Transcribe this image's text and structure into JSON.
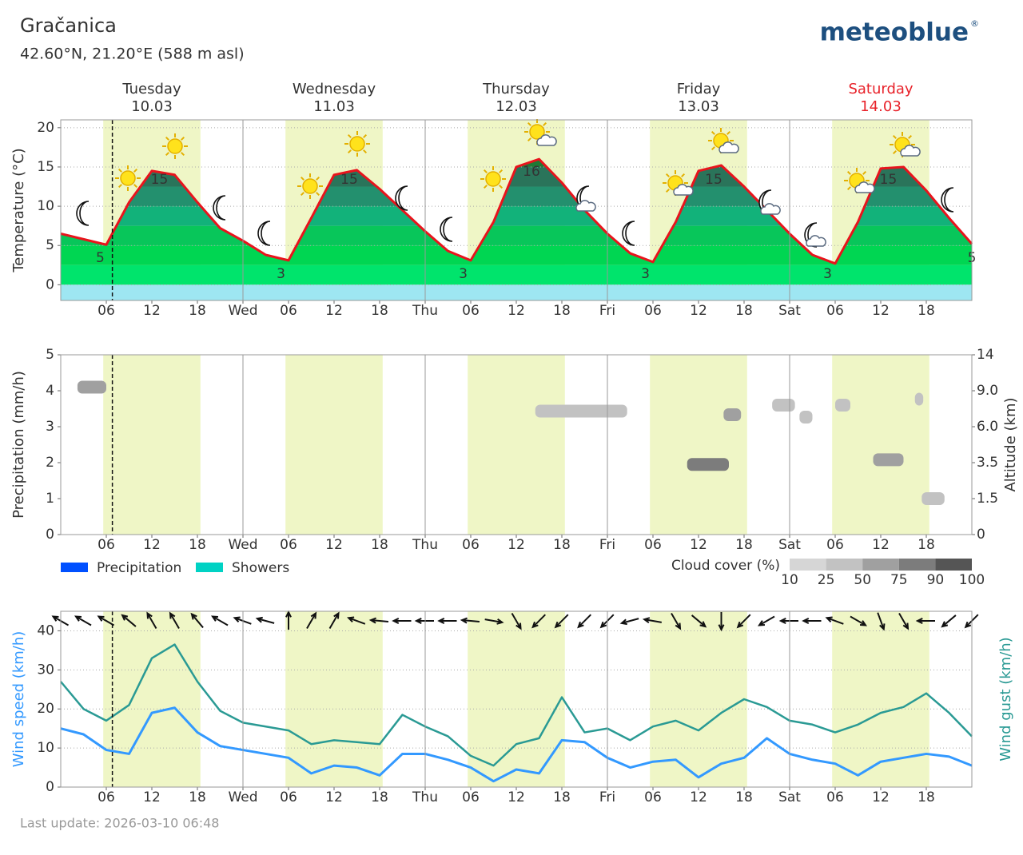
{
  "header": {
    "title": "Gračanica",
    "subtitle": "42.60°N, 21.20°E (588 m asl)",
    "logo": "meteoblue",
    "logo_mark": "®"
  },
  "days": [
    {
      "name": "Tuesday",
      "date": "10.03"
    },
    {
      "name": "Wednesday",
      "date": "11.03"
    },
    {
      "name": "Thursday",
      "date": "12.03"
    },
    {
      "name": "Friday",
      "date": "13.03"
    },
    {
      "name": "Saturday",
      "date": "14.03",
      "color": "#e8222a"
    }
  ],
  "time_axis": {
    "xlim": [
      0,
      120
    ],
    "xticks": [
      {
        "value": 6,
        "label": "06"
      },
      12,
      18,
      {
        "value": 24,
        "label": "Wed"
      },
      {
        "value": 30,
        "label": "06"
      },
      {
        "value": 36,
        "label": "12"
      },
      {
        "value": 42,
        "label": "18"
      },
      {
        "value": 48,
        "label": "Thu"
      },
      {
        "value": 54,
        "label": "06"
      },
      {
        "value": 60,
        "label": "12"
      },
      {
        "value": 66,
        "label": "18"
      },
      {
        "value": 72,
        "label": "Fri"
      },
      {
        "value": 78,
        "label": "06"
      },
      {
        "value": 84,
        "label": "12"
      },
      {
        "value": 90,
        "label": "18"
      },
      {
        "value": 96,
        "label": "Sat"
      },
      {
        "value": 102,
        "label": "06"
      },
      {
        "value": 108,
        "label": "12"
      },
      {
        "value": 114,
        "label": "18"
      }
    ],
    "daylight": [
      [
        5.6,
        18.4
      ],
      [
        29.6,
        42.4
      ],
      [
        53.6,
        66.4
      ],
      [
        77.6,
        90.4
      ],
      [
        101.6,
        114.4
      ]
    ],
    "now": 6.8
  },
  "chart_data": [
    {
      "type": "area",
      "y_label": "Temperature (°C)",
      "color": "#e8141c",
      "x": [
        0,
        3,
        6,
        9,
        12,
        15,
        18,
        21,
        24,
        27,
        30,
        33,
        36,
        39,
        42,
        45,
        48,
        51,
        54,
        57,
        60,
        63,
        66,
        69,
        72,
        75,
        78,
        81,
        84,
        87,
        90,
        93,
        96,
        99,
        102,
        105,
        108,
        111,
        114,
        117,
        120
      ],
      "values": [
        6.5,
        5.8,
        5.1,
        10.5,
        14.5,
        14,
        10.5,
        7.2,
        5.6,
        3.8,
        3.1,
        8.5,
        14,
        14.6,
        12.2,
        9.5,
        6.8,
        4.3,
        3.1,
        8,
        15,
        16,
        13,
        9.5,
        6.5,
        4,
        2.9,
        8,
        14.5,
        15.2,
        12.5,
        9.5,
        6.5,
        3.8,
        2.7,
        8,
        14.8,
        15,
        12,
        8.5,
        5.2
      ],
      "ylim": [
        -2,
        21
      ],
      "yticks": [
        0,
        5,
        10,
        15,
        20
      ],
      "grid": true,
      "extreme_labels": [
        {
          "x": 5.2,
          "value": 5
        },
        {
          "x": 13,
          "value": 15
        },
        {
          "x": 29,
          "value": 3
        },
        {
          "x": 38,
          "value": 15
        },
        {
          "x": 53,
          "value": 3
        },
        {
          "x": 62,
          "value": 16
        },
        {
          "x": 77,
          "value": 3
        },
        {
          "x": 86,
          "value": 15
        },
        {
          "x": 101,
          "value": 3
        },
        {
          "x": 109,
          "value": 15
        },
        {
          "x": 120,
          "value": 5
        }
      ]
    },
    {
      "type": "bar",
      "y_label": "Precipitation (mm/h)",
      "y2_label": "Altitude (km)",
      "ylim": [
        0,
        5
      ],
      "yticks": [
        0,
        1,
        2,
        3,
        4,
        5
      ],
      "y2lim": [
        0,
        14
      ],
      "y2ticks": [
        0,
        1.5,
        3.5,
        {
          "value": 6,
          "label": "6.0"
        },
        {
          "value": 9,
          "label": "9.0"
        },
        14
      ],
      "series": [
        {
          "name": "Precipitation",
          "color": "#0050ff"
        },
        {
          "name": "Showers",
          "color": "#00d2c4"
        }
      ],
      "cloud_legend": {
        "title": "Cloud cover (%)",
        "levels": [
          10,
          25,
          50,
          75,
          90,
          100
        ]
      },
      "cloud_patches": [
        {
          "start": 2.2,
          "end": 6,
          "altitude": 9.5,
          "cover": 50
        },
        {
          "start": 62.5,
          "end": 74.6,
          "altitude": 7.3,
          "cover": 25
        },
        {
          "start": 82.5,
          "end": 88,
          "altitude": 3.4,
          "cover": 75
        },
        {
          "start": 87.3,
          "end": 89.6,
          "altitude": 7,
          "cover": 50
        },
        {
          "start": 93.7,
          "end": 96.7,
          "altitude": 7.8,
          "cover": 25
        },
        {
          "start": 97.3,
          "end": 99,
          "altitude": 6.8,
          "cover": 25
        },
        {
          "start": 102,
          "end": 104,
          "altitude": 7.8,
          "cover": 25
        },
        {
          "start": 107,
          "end": 111,
          "altitude": 3.7,
          "cover": 50
        },
        {
          "start": 112.5,
          "end": 113.6,
          "altitude": 8.3,
          "cover": 25
        },
        {
          "start": 113.4,
          "end": 116.4,
          "altitude": 1.5,
          "cover": 25
        }
      ]
    },
    {
      "type": "line",
      "x": [
        0,
        3,
        6,
        9,
        12,
        15,
        18,
        21,
        24,
        27,
        30,
        33,
        36,
        39,
        42,
        45,
        48,
        51,
        54,
        57,
        60,
        63,
        66,
        69,
        72,
        75,
        78,
        81,
        84,
        87,
        90,
        93,
        96,
        99,
        102,
        105,
        108,
        111,
        114,
        117,
        120
      ],
      "series": [
        {
          "name": "Wind speed (km/h)",
          "color": "#3399ff",
          "values": [
            15,
            13.5,
            9.5,
            8.5,
            19,
            20.3,
            14,
            10.5,
            9.5,
            8.5,
            7.5,
            3.5,
            5.5,
            5,
            3,
            8.5,
            8.5,
            7,
            5,
            1.5,
            4.5,
            3.5,
            12,
            11.5,
            7.5,
            5,
            6.5,
            7,
            2.5,
            6,
            7.5,
            12.5,
            8.5,
            7,
            6,
            3,
            6.5,
            7.5,
            8.5,
            7.8,
            5.5
          ]
        },
        {
          "name": "Wind gust (km/h)",
          "color": "#2a9a94",
          "axis": "y2",
          "values": [
            27,
            20,
            17,
            21,
            33,
            36.5,
            27,
            19.5,
            16.5,
            15.5,
            14.5,
            11,
            12,
            11.5,
            11,
            18.5,
            15.5,
            13,
            8,
            5.5,
            11,
            12.5,
            23,
            14,
            15,
            12,
            15.5,
            17,
            14.5,
            19,
            22.5,
            20.5,
            17,
            16,
            14,
            16,
            19,
            20.5,
            24,
            19,
            13
          ]
        }
      ],
      "ylim": [
        0,
        45
      ],
      "yticks": [
        0,
        10,
        20,
        30,
        40
      ],
      "y2lim": [
        0,
        45
      ],
      "grid": true,
      "wind_direction": [
        300,
        300,
        300,
        310,
        330,
        330,
        320,
        300,
        290,
        285,
        0,
        30,
        30,
        290,
        275,
        270,
        270,
        270,
        275,
        100,
        150,
        225,
        225,
        225,
        225,
        255,
        280,
        150,
        130,
        180,
        225,
        240,
        270,
        270,
        290,
        120,
        160,
        150,
        270,
        230,
        225
      ]
    }
  ],
  "footer": "Last update: 2026-03-10 06:48"
}
